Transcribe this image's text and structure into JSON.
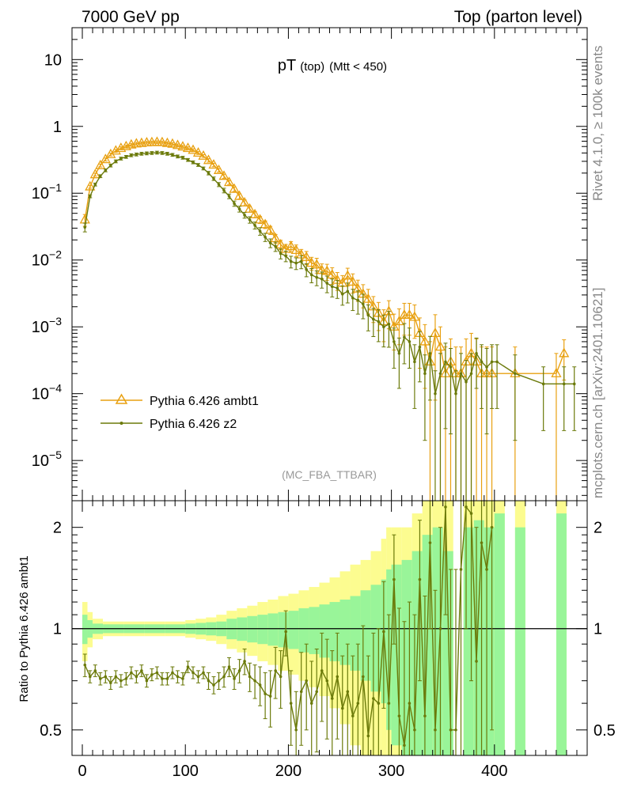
{
  "header": {
    "left": "7000 GeV pp",
    "right": "Top (parton level)"
  },
  "side_texts": {
    "rivet": "Rivet 4.1.0, ≥ 100k events",
    "mcplots": "mcplots.cern.ch [arXiv:2401.10621]"
  },
  "colors": {
    "ambt1": "#e8a010",
    "z2": "#6b7a0a",
    "band_inner": "#99f599",
    "band_outer": "#fcfc90",
    "frame": "#000000",
    "label_grey": "#999999"
  },
  "chart_data": [
    {
      "type": "line",
      "title_main": "pT",
      "title_sub": "(top)",
      "title_cut": "(Mtt < 450)",
      "watermark": "(MC_FBA_TTBAR)",
      "yscale": "log",
      "xlim": [
        -10,
        490
      ],
      "ylim": [
        2.5e-06,
        30
      ],
      "xticks": [
        0,
        100,
        200,
        300,
        400
      ],
      "y_major_labels": [
        {
          "v": 10,
          "base": "10",
          "exp": ""
        },
        {
          "v": 1,
          "base": "1",
          "exp": ""
        },
        {
          "v": 0.1,
          "base": "10",
          "exp": "−1"
        },
        {
          "v": 0.01,
          "base": "10",
          "exp": "−2"
        },
        {
          "v": 0.001,
          "base": "10",
          "exp": "−3"
        },
        {
          "v": 0.0001,
          "base": "10",
          "exp": "−4"
        },
        {
          "v": 1e-05,
          "base": "10",
          "exp": "−5"
        }
      ],
      "legend": [
        {
          "name": "Pythia 6.426 ambt1",
          "marker": "triangle"
        },
        {
          "name": "Pythia 6.426 z2",
          "marker": "dot"
        }
      ],
      "series": [
        {
          "name": "Pythia 6.426 ambt1",
          "x": [
            2.5,
            7.5,
            12.5,
            17.5,
            22.5,
            27.5,
            32.5,
            37.5,
            42.5,
            47.5,
            52.5,
            57.5,
            62.5,
            67.5,
            72.5,
            77.5,
            82.5,
            87.5,
            92.5,
            97.5,
            102.5,
            107.5,
            112.5,
            117.5,
            122.5,
            127.5,
            132.5,
            137.5,
            142.5,
            147.5,
            152.5,
            157.5,
            162.5,
            167.5,
            172.5,
            177.5,
            182.5,
            187.5,
            192.5,
            197.5,
            202.5,
            207.5,
            212.5,
            217.5,
            222.5,
            227.5,
            232.5,
            237.5,
            242.5,
            247.5,
            252.5,
            257.5,
            262.5,
            267.5,
            272.5,
            277.5,
            282.5,
            287.5,
            292.5,
            297.5,
            302.5,
            307.5,
            312.5,
            317.5,
            322.5,
            327.5,
            332.5,
            337.5,
            342.5,
            347.5,
            352.5,
            357.5,
            362.5,
            367.5,
            372.5,
            377.5,
            382.5,
            387.5,
            392.5,
            397.5,
            420,
            460,
            467.5
          ],
          "y": [
            0.04,
            0.125,
            0.19,
            0.26,
            0.32,
            0.38,
            0.43,
            0.47,
            0.5,
            0.53,
            0.55,
            0.56,
            0.57,
            0.575,
            0.58,
            0.575,
            0.56,
            0.545,
            0.52,
            0.495,
            0.47,
            0.44,
            0.4,
            0.36,
            0.31,
            0.265,
            0.22,
            0.18,
            0.145,
            0.115,
            0.09,
            0.072,
            0.058,
            0.048,
            0.04,
            0.034,
            0.028,
            0.021,
            0.017,
            0.0145,
            0.016,
            0.014,
            0.012,
            0.011,
            0.009,
            0.0085,
            0.007,
            0.0068,
            0.006,
            0.005,
            0.0045,
            0.0058,
            0.0047,
            0.0037,
            0.0031,
            0.0026,
            0.002,
            0.0016,
            0.0012,
            0.0017,
            0.001,
            0.0012,
            0.0015,
            0.0015,
            0.0014,
            0.0008,
            0.0006,
            0.0003,
            0.0008,
            0.0005,
            0.0002,
            0.0003,
            0.0002,
            0.0002,
            0.0003,
            0.0004,
            0.0003,
            0.0002,
            0.0002,
            0.0002,
            0.0002,
            0.0002,
            0.0004
          ],
          "err": [
            0.2,
            0.05,
            0.05,
            0.05,
            0.05,
            0.05,
            0.05,
            0.05,
            0.05,
            0.05,
            0.05,
            0.05,
            0.05,
            0.05,
            0.05,
            0.05,
            0.05,
            0.05,
            0.05,
            0.05,
            0.05,
            0.05,
            0.05,
            0.05,
            0.06,
            0.06,
            0.06,
            0.07,
            0.07,
            0.08,
            0.09,
            0.1,
            0.1,
            0.11,
            0.12,
            0.13,
            0.14,
            0.15,
            0.16,
            0.18,
            0.18,
            0.2,
            0.2,
            0.22,
            0.22,
            0.25,
            0.25,
            0.27,
            0.28,
            0.3,
            0.3,
            0.3,
            0.32,
            0.35,
            0.38,
            0.4,
            0.42,
            0.45,
            0.5,
            0.45,
            0.55,
            0.55,
            0.5,
            0.5,
            0.52,
            0.7,
            0.8,
            1.0,
            0.9,
            1.0,
            1.5,
            1.2,
            1.5,
            1.5,
            1.2,
            1.0,
            1.2,
            1.5,
            1.5,
            1.5,
            1.5,
            1.0,
            0.6
          ]
        },
        {
          "name": "Pythia 6.426 z2",
          "x": [
            2.5,
            7.5,
            12.5,
            17.5,
            22.5,
            27.5,
            32.5,
            37.5,
            42.5,
            47.5,
            52.5,
            57.5,
            62.5,
            67.5,
            72.5,
            77.5,
            82.5,
            87.5,
            92.5,
            97.5,
            102.5,
            107.5,
            112.5,
            117.5,
            122.5,
            127.5,
            132.5,
            137.5,
            142.5,
            147.5,
            152.5,
            157.5,
            162.5,
            167.5,
            172.5,
            177.5,
            182.5,
            187.5,
            192.5,
            197.5,
            202.5,
            207.5,
            212.5,
            217.5,
            222.5,
            227.5,
            232.5,
            237.5,
            242.5,
            247.5,
            252.5,
            257.5,
            262.5,
            267.5,
            272.5,
            277.5,
            282.5,
            287.5,
            292.5,
            297.5,
            302.5,
            307.5,
            312.5,
            317.5,
            322.5,
            327.5,
            332.5,
            337.5,
            342.5,
            347.5,
            352.5,
            357.5,
            362.5,
            367.5,
            372.5,
            377.5,
            382.5,
            387.5,
            392.5,
            397.5,
            402.5,
            420,
            447.5,
            467.5,
            477.5
          ],
          "y": [
            0.031,
            0.09,
            0.135,
            0.18,
            0.22,
            0.26,
            0.3,
            0.33,
            0.35,
            0.37,
            0.38,
            0.39,
            0.395,
            0.4,
            0.405,
            0.4,
            0.39,
            0.375,
            0.355,
            0.34,
            0.315,
            0.29,
            0.265,
            0.235,
            0.2,
            0.165,
            0.135,
            0.11,
            0.09,
            0.07,
            0.058,
            0.047,
            0.04,
            0.033,
            0.027,
            0.022,
            0.018,
            0.016,
            0.0125,
            0.0115,
            0.0095,
            0.009,
            0.0095,
            0.0072,
            0.006,
            0.0055,
            0.0052,
            0.0045,
            0.004,
            0.0038,
            0.0031,
            0.0034,
            0.0027,
            0.0025,
            0.0022,
            0.0015,
            0.0013,
            0.0012,
            0.001,
            0.0011,
            0.0006,
            0.0004,
            0.0007,
            0.0006,
            0.0003,
            0.0005,
            0.0002,
            0.0004,
            0.0001,
            0.0002,
            0.0003,
            0.00025,
            0.0001,
            0.0002,
            0.00015,
            0.0002,
            0.0004,
            0.0003,
            0.00025,
            0.0003,
            0.0003,
            0.0002,
            0.00014,
            0.00014,
            0.00014
          ],
          "err": [
            0.15,
            0.05,
            0.05,
            0.05,
            0.05,
            0.05,
            0.05,
            0.05,
            0.05,
            0.05,
            0.05,
            0.05,
            0.05,
            0.05,
            0.05,
            0.05,
            0.05,
            0.05,
            0.05,
            0.05,
            0.05,
            0.05,
            0.05,
            0.05,
            0.06,
            0.06,
            0.07,
            0.08,
            0.08,
            0.09,
            0.1,
            0.1,
            0.11,
            0.12,
            0.13,
            0.14,
            0.15,
            0.16,
            0.17,
            0.18,
            0.2,
            0.2,
            0.22,
            0.22,
            0.24,
            0.25,
            0.27,
            0.28,
            0.3,
            0.3,
            0.32,
            0.33,
            0.35,
            0.38,
            0.4,
            0.42,
            0.45,
            0.5,
            0.5,
            0.55,
            0.6,
            0.7,
            0.6,
            0.6,
            0.8,
            0.7,
            0.9,
            0.8,
            1.2,
            1.0,
            0.9,
            0.9,
            1.2,
            1.0,
            1.1,
            1.0,
            0.7,
            0.8,
            0.9,
            0.8,
            0.8,
            0.9,
            0.8,
            0.8,
            0.8
          ]
        }
      ]
    },
    {
      "type": "line",
      "ylabel": "Ratio to Pythia 6.426 ambt1",
      "yscale": "log",
      "xlim": [
        -10,
        490
      ],
      "ylim": [
        0.42,
        2.4
      ],
      "yticks_labels": [
        {
          "v": 0.5,
          "label": "0.5"
        },
        {
          "v": 1,
          "label": "1"
        },
        {
          "v": 2,
          "label": "2"
        }
      ],
      "xtick_labels": [
        "0",
        "100",
        "200",
        "300",
        "400"
      ],
      "reference": 1,
      "band_edges": [
        0,
        5,
        10,
        20,
        40,
        60,
        80,
        100,
        110,
        120,
        130,
        140,
        150,
        160,
        170,
        180,
        190,
        200,
        210,
        220,
        230,
        240,
        250,
        260,
        270,
        280,
        290,
        295,
        300,
        310,
        320,
        330,
        340,
        350,
        360,
        370,
        380,
        390,
        400,
        410,
        420,
        430,
        440,
        450,
        460,
        470,
        480
      ],
      "band_inner": [
        0.1,
        0.06,
        0.035,
        0.03,
        0.03,
        0.03,
        0.03,
        0.035,
        0.04,
        0.045,
        0.05,
        0.07,
        0.08,
        0.09,
        0.1,
        0.11,
        0.12,
        0.13,
        0.15,
        0.16,
        0.18,
        0.2,
        0.22,
        0.25,
        0.3,
        0.35,
        0.4,
        0.5,
        0.55,
        0.6,
        0.7,
        0.9,
        1.0,
        0.7,
        0.0,
        1.0,
        1.1,
        1.0,
        1.2,
        0.0,
        1.0,
        0.0,
        0.0,
        0.0,
        1.2,
        0.0
      ],
      "band_outer": [
        0.2,
        0.12,
        0.07,
        0.05,
        0.05,
        0.05,
        0.05,
        0.06,
        0.07,
        0.08,
        0.1,
        0.13,
        0.15,
        0.17,
        0.2,
        0.22,
        0.25,
        0.27,
        0.3,
        0.33,
        0.37,
        0.42,
        0.48,
        0.55,
        0.6,
        0.7,
        0.85,
        1.0,
        1.0,
        1.0,
        1.2,
        1.5,
        1.5,
        1.5,
        0.0,
        1.6,
        1.6,
        1.6,
        1.5,
        0.0,
        1.6,
        0.0,
        0.0,
        0.0,
        1.6,
        0.0
      ],
      "ratio_series": {
        "name": "Pythia 6.426 z2",
        "x": [
          2.5,
          7.5,
          12.5,
          17.5,
          22.5,
          27.5,
          32.5,
          37.5,
          42.5,
          47.5,
          52.5,
          57.5,
          62.5,
          67.5,
          72.5,
          77.5,
          82.5,
          87.5,
          92.5,
          97.5,
          102.5,
          107.5,
          112.5,
          117.5,
          122.5,
          127.5,
          132.5,
          137.5,
          142.5,
          147.5,
          152.5,
          157.5,
          162.5,
          167.5,
          172.5,
          177.5,
          182.5,
          187.5,
          192.5,
          197.5,
          202.5,
          207.5,
          212.5,
          217.5,
          222.5,
          227.5,
          232.5,
          237.5,
          242.5,
          247.5,
          252.5,
          257.5,
          262.5,
          267.5,
          272.5,
          277.5,
          282.5,
          287.5,
          292.5,
          297.5,
          302.5,
          307.5,
          312.5,
          317.5,
          322.5,
          327.5,
          332.5,
          337.5,
          342.5,
          347.5,
          352.5,
          357.5,
          362.5,
          367.5,
          372.5,
          377.5,
          382.5,
          387.5,
          392.5,
          397.5
        ],
        "y": [
          0.78,
          0.72,
          0.75,
          0.71,
          0.72,
          0.69,
          0.72,
          0.7,
          0.71,
          0.74,
          0.72,
          0.75,
          0.7,
          0.73,
          0.74,
          0.71,
          0.71,
          0.74,
          0.72,
          0.71,
          0.77,
          0.74,
          0.72,
          0.74,
          0.7,
          0.68,
          0.7,
          0.72,
          0.77,
          0.71,
          0.75,
          0.8,
          0.72,
          0.7,
          0.68,
          0.64,
          0.63,
          0.75,
          0.72,
          0.98,
          0.6,
          0.5,
          0.65,
          0.7,
          0.6,
          0.65,
          0.75,
          0.7,
          0.62,
          0.72,
          0.58,
          0.65,
          0.55,
          0.6,
          0.72,
          0.48,
          0.62,
          0.6,
          0.98,
          0.6,
          1.4,
          0.55,
          0.45,
          0.6,
          0.5,
          1.4,
          0.55,
          1.8,
          0.5,
          1.0,
          2.3,
          0.5,
          0.5,
          1.5,
          2.3,
          2.2,
          0.8,
          1.8,
          1.5,
          2.0
        ],
        "err": [
          0.06,
          0.03,
          0.03,
          0.03,
          0.03,
          0.03,
          0.03,
          0.03,
          0.03,
          0.03,
          0.03,
          0.03,
          0.03,
          0.03,
          0.03,
          0.03,
          0.03,
          0.03,
          0.03,
          0.03,
          0.03,
          0.03,
          0.03,
          0.03,
          0.04,
          0.04,
          0.04,
          0.05,
          0.05,
          0.05,
          0.06,
          0.07,
          0.07,
          0.08,
          0.09,
          0.1,
          0.12,
          0.13,
          0.14,
          0.15,
          0.15,
          0.15,
          0.2,
          0.2,
          0.2,
          0.22,
          0.22,
          0.23,
          0.24,
          0.25,
          0.25,
          0.25,
          0.28,
          0.3,
          0.3,
          0.35,
          0.35,
          0.4,
          0.4,
          0.5,
          0.5,
          0.6,
          0.6,
          0.6,
          0.6,
          0.7,
          0.7,
          0.8,
          0.8,
          1.0,
          1.2,
          1.0,
          1.0,
          1.2,
          1.3,
          1.5,
          1.2,
          1.5,
          1.5,
          1.5
        ]
      }
    }
  ]
}
